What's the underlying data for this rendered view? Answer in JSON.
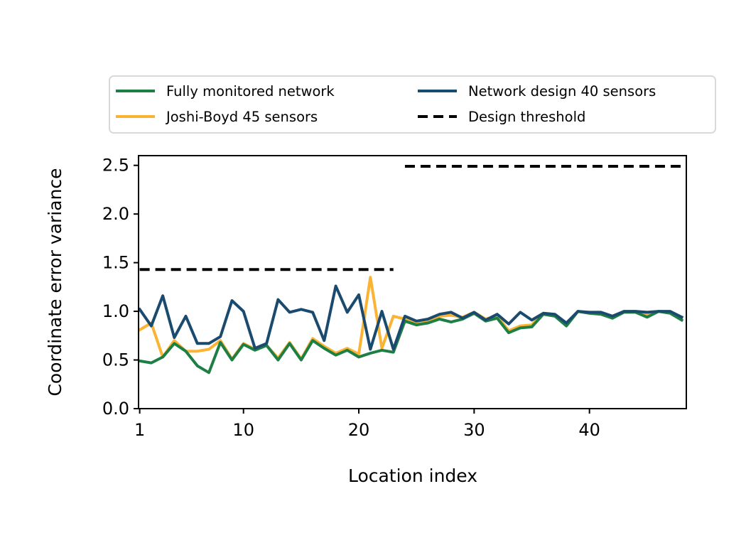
{
  "chart_data": {
    "type": "line",
    "xlabel": "Location index",
    "ylabel": "Coordinate error variance",
    "xlim": [
      0.9,
      48.4
    ],
    "ylim": [
      0,
      2.6
    ],
    "x_ticks": [
      1,
      10,
      20,
      30,
      40
    ],
    "y_ticks": [
      0.0,
      0.5,
      1.0,
      1.5,
      2.0,
      2.5
    ],
    "x_tick_labels": [
      "1",
      "10",
      "20",
      "30",
      "40"
    ],
    "y_tick_labels": [
      "0.0",
      "0.5",
      "1.0",
      "1.5",
      "2.0",
      "2.5"
    ],
    "grid": false,
    "legend_position": "top",
    "x": [
      1,
      2,
      3,
      4,
      5,
      6,
      7,
      8,
      9,
      10,
      11,
      12,
      13,
      14,
      15,
      16,
      17,
      18,
      19,
      20,
      21,
      22,
      23,
      24,
      25,
      26,
      27,
      28,
      29,
      30,
      31,
      32,
      33,
      34,
      35,
      36,
      37,
      38,
      39,
      40,
      41,
      42,
      43,
      44,
      45,
      46,
      47,
      48
    ],
    "series": [
      {
        "name": "Fully monitored network",
        "color": "#1e7f45",
        "style": "solid",
        "values": [
          0.49,
          0.47,
          0.53,
          0.67,
          0.59,
          0.44,
          0.37,
          0.68,
          0.5,
          0.66,
          0.6,
          0.65,
          0.5,
          0.67,
          0.5,
          0.7,
          0.62,
          0.55,
          0.6,
          0.53,
          0.57,
          0.6,
          0.58,
          0.9,
          0.86,
          0.88,
          0.92,
          0.89,
          0.92,
          0.98,
          0.9,
          0.93,
          0.78,
          0.83,
          0.84,
          0.97,
          0.95,
          0.85,
          1.0,
          0.98,
          0.97,
          0.93,
          0.99,
          0.99,
          0.94,
          1.0,
          0.98,
          0.91
        ]
      },
      {
        "name": "Joshi-Boyd 45 sensors",
        "color": "#fbb334",
        "style": "solid",
        "values": [
          0.81,
          0.88,
          0.53,
          0.7,
          0.59,
          0.59,
          0.61,
          0.7,
          0.51,
          0.67,
          0.61,
          0.65,
          0.52,
          0.68,
          0.51,
          0.72,
          0.64,
          0.57,
          0.62,
          0.56,
          1.35,
          0.62,
          0.95,
          0.92,
          0.87,
          0.9,
          0.95,
          0.96,
          0.94,
          0.99,
          0.92,
          0.95,
          0.8,
          0.85,
          0.86,
          0.98,
          0.96,
          0.87,
          1.0,
          0.98,
          0.98,
          0.93,
          1.0,
          1.0,
          0.96,
          1.0,
          0.99,
          0.94
        ]
      },
      {
        "name": "Network design 40 sensors",
        "color": "#1a4b6e",
        "style": "solid",
        "values": [
          1.02,
          0.85,
          1.16,
          0.73,
          0.95,
          0.67,
          0.67,
          0.74,
          1.11,
          1.0,
          0.62,
          0.67,
          1.12,
          0.99,
          1.02,
          0.99,
          0.7,
          1.26,
          0.99,
          1.17,
          0.61,
          1.0,
          0.61,
          0.95,
          0.9,
          0.92,
          0.97,
          0.99,
          0.93,
          0.99,
          0.91,
          0.97,
          0.87,
          0.99,
          0.91,
          0.98,
          0.97,
          0.88,
          1.0,
          0.99,
          0.99,
          0.95,
          1.0,
          1.0,
          0.99,
          1.0,
          1.0,
          0.94
        ]
      },
      {
        "name": "Design threshold",
        "color": "#000000",
        "style": "dashed",
        "segments": [
          {
            "x": [
              1,
              23
            ],
            "values": [
              1.43,
              1.43
            ]
          },
          {
            "x": [
              24,
              48
            ],
            "values": [
              2.49,
              2.49
            ]
          }
        ]
      }
    ]
  }
}
